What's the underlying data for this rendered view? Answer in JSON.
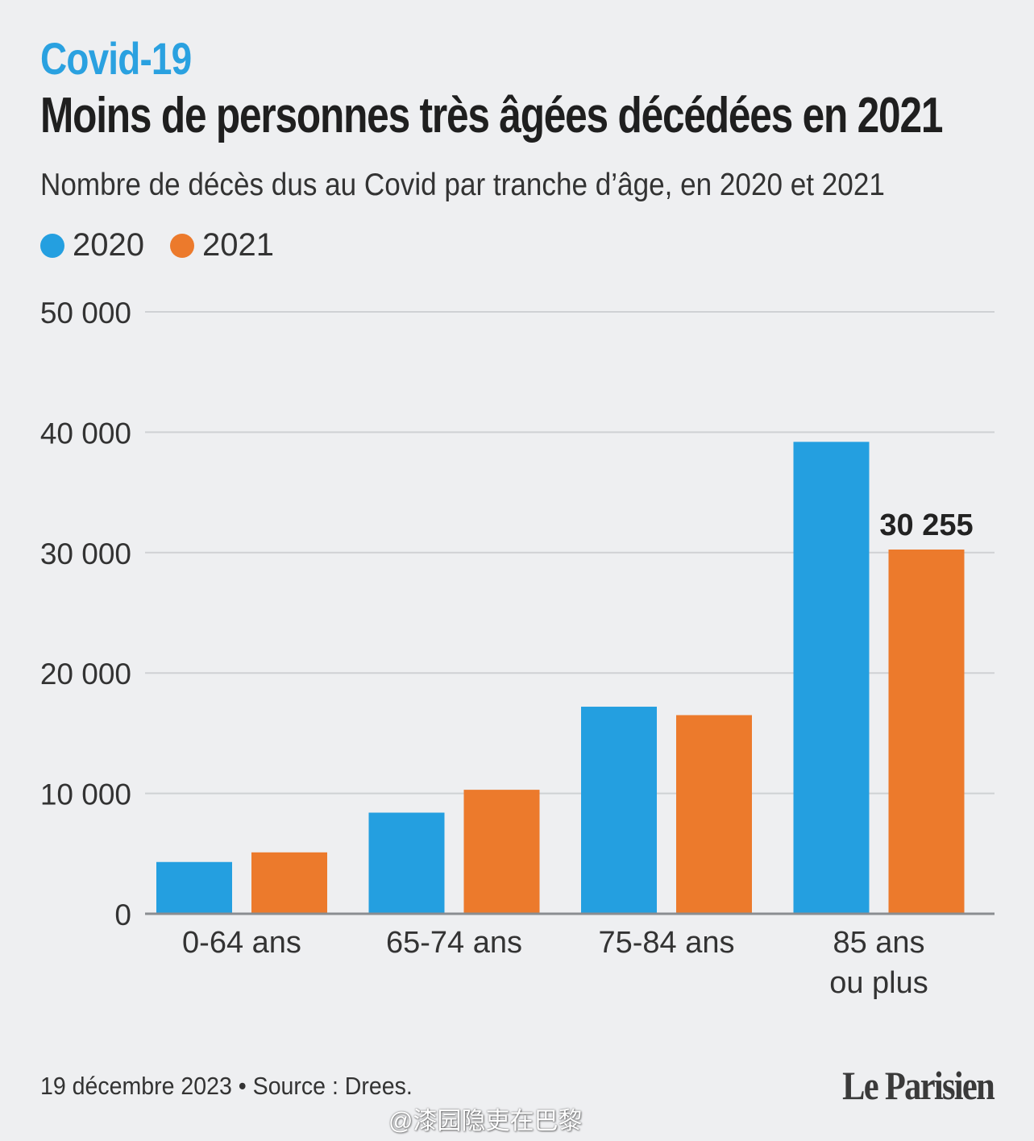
{
  "header": {
    "kicker": "Covid-19",
    "title": "Moins de personnes très âgées décédées en 2021",
    "subtitle": "Nombre de décès dus au Covid par tranche d’âge, en 2020 et 2021"
  },
  "chart_data": {
    "type": "bar",
    "categories": [
      "0-64 ans",
      "65-74 ans",
      "75-84 ans",
      "85 ans ou plus"
    ],
    "category_lines": [
      [
        "0-64 ans"
      ],
      [
        "65-74 ans"
      ],
      [
        "75-84 ans"
      ],
      [
        "85 ans",
        "ou plus"
      ]
    ],
    "series": [
      {
        "name": "2020",
        "color": "#249fe0",
        "values": [
          4300,
          8400,
          17200,
          39200
        ]
      },
      {
        "name": "2021",
        "color": "#ec7a2c",
        "values": [
          5100,
          10300,
          16500,
          30255
        ]
      }
    ],
    "ylim": [
      0,
      50000
    ],
    "yticks": [
      0,
      10000,
      20000,
      30000,
      40000,
      50000
    ],
    "ytick_labels": [
      "0",
      "10 000",
      "20 000",
      "30 000",
      "40 000",
      "50 000"
    ],
    "annotation": {
      "series": 1,
      "category": 3,
      "text": "30 255"
    },
    "grid": true,
    "legend_position": "top-left"
  },
  "footer": {
    "note": "19 décembre 2023 • Source : Drees.",
    "brand": "Le Parisien",
    "watermark": "@漆园隐吏在巴黎"
  }
}
